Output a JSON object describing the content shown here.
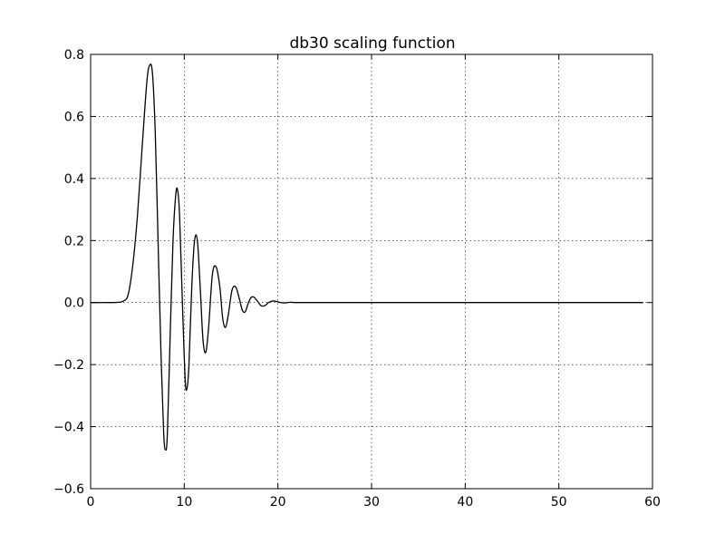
{
  "chart_data": {
    "type": "line",
    "title": "db30 scaling function",
    "xlabel": "",
    "ylabel": "",
    "xlim": [
      0,
      60
    ],
    "ylim": [
      -0.6,
      0.8
    ],
    "x_ticks": [
      0,
      10,
      20,
      30,
      40,
      50,
      60
    ],
    "x_tick_labels": [
      "0",
      "10",
      "20",
      "30",
      "40",
      "50",
      "60"
    ],
    "y_ticks": [
      -0.6,
      -0.4,
      -0.2,
      0.0,
      0.2,
      0.4,
      0.6,
      0.8
    ],
    "y_tick_labels": [
      "−0.6",
      "−0.4",
      "−0.2",
      "0.0",
      "0.2",
      "0.4",
      "0.6",
      "0.8"
    ],
    "grid": true,
    "legend": "none",
    "colors": {
      "line": "#000000",
      "background": "#ffffff"
    },
    "series": [
      {
        "x": [
          0,
          2,
          3,
          3.5,
          4,
          4.5,
          5,
          5.5,
          6,
          6.3,
          6.6,
          6.9,
          7.2,
          7.5,
          7.8,
          8.0,
          8.2,
          8.5,
          8.8,
          9.1,
          9.3,
          9.5,
          9.8,
          10.1,
          10.3,
          10.5,
          10.8,
          11.1,
          11.4,
          11.7,
          12.0,
          12.3,
          12.6,
          13.0,
          13.4,
          13.8,
          14.1,
          14.4,
          14.7,
          15.1,
          15.5,
          15.9,
          16.2,
          16.5,
          16.8,
          17.1,
          17.4,
          17.8,
          18.2,
          18.6,
          19.0,
          19.4,
          19.8,
          20.3,
          20.8,
          21.3,
          22,
          25,
          30,
          40,
          50,
          59
        ],
        "y": [
          0,
          0,
          0.001,
          0.005,
          0.025,
          0.12,
          0.28,
          0.5,
          0.71,
          0.765,
          0.74,
          0.55,
          0.2,
          -0.15,
          -0.42,
          -0.475,
          -0.42,
          -0.1,
          0.2,
          0.35,
          0.36,
          0.28,
          0.0,
          -0.25,
          -0.275,
          -0.2,
          0.05,
          0.2,
          0.2,
          0.05,
          -0.12,
          -0.16,
          -0.08,
          0.09,
          0.115,
          0.05,
          -0.05,
          -0.08,
          -0.04,
          0.04,
          0.05,
          0.01,
          -0.025,
          -0.03,
          -0.005,
          0.015,
          0.018,
          0.005,
          -0.01,
          -0.01,
          0.0,
          0.005,
          0.004,
          0.0,
          -0.001,
          0.001,
          0,
          0,
          0,
          0,
          0,
          0
        ]
      }
    ]
  }
}
